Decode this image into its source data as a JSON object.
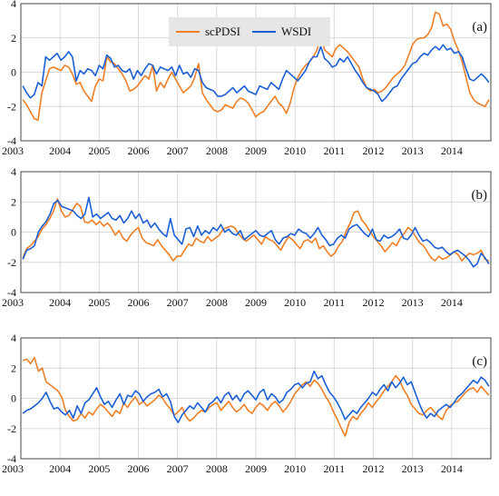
{
  "chart_data": [
    {
      "type": "line",
      "panel_label": "(a)",
      "xlim": [
        2003,
        2015
      ],
      "ylim": [
        -4,
        4
      ],
      "yticks": [
        -4,
        -2,
        0,
        2,
        4
      ],
      "xtick_labels": [
        "2003",
        "2004",
        "2005",
        "2006",
        "2007",
        "2008",
        "2009",
        "2010",
        "2011",
        "2012",
        "2013",
        "2014"
      ],
      "grid": true,
      "legend": {
        "position": "top-center",
        "entries": [
          "scPDSI",
          "WSDI"
        ]
      },
      "series": [
        {
          "name": "scPDSI",
          "color": "#F07F26",
          "values": [
            -1.6,
            -1.9,
            -2.3,
            -2.7,
            -2.8,
            -1.2,
            -0.5,
            0.2,
            0.3,
            0.2,
            0.1,
            0.4,
            0.3,
            -0.1,
            -0.7,
            -0.6,
            -1.1,
            -1.4,
            -1.7,
            -0.8,
            -0.4,
            -0.5,
            0.9,
            0.6,
            0.5,
            0.2,
            -0.1,
            -0.5,
            -1.1,
            -1.0,
            -0.8,
            -0.5,
            -0.2,
            -0.4,
            0.4,
            -1.1,
            -0.6,
            -0.9,
            -0.4,
            0.0,
            -0.4,
            -0.8,
            -1.2,
            -1.0,
            -0.8,
            -0.3,
            0.5,
            -1.2,
            -1.6,
            -1.9,
            -2.2,
            -2.3,
            -2.2,
            -1.9,
            -2.0,
            -2.1,
            -1.7,
            -1.5,
            -1.6,
            -1.8,
            -2.2,
            -2.6,
            -2.4,
            -2.3,
            -2.0,
            -1.7,
            -1.4,
            -1.8,
            -2.0,
            -2.4,
            -1.8,
            -0.9,
            -0.3,
            0.1,
            0.4,
            0.6,
            0.9,
            1.3,
            2.1,
            1.3,
            1.1,
            0.9,
            1.4,
            1.6,
            1.4,
            1.2,
            0.9,
            0.6,
            0.3,
            -0.4,
            -0.9,
            -1.1,
            -1.0,
            -1.2,
            -1.1,
            -0.9,
            -0.6,
            -0.3,
            -0.1,
            0.1,
            0.4,
            1.0,
            1.6,
            1.9,
            2.0,
            2.0,
            2.2,
            2.6,
            3.5,
            3.4,
            2.7,
            2.8,
            2.5,
            1.8,
            1.3,
            0.6,
            -0.3,
            -1.2,
            -1.6,
            -1.8,
            -1.9,
            -2.0,
            -1.6
          ]
        },
        {
          "name": "WSDI",
          "color": "#1A5FD6",
          "values": [
            -0.8,
            -1.2,
            -1.5,
            -1.3,
            -0.6,
            -0.8,
            0.9,
            0.7,
            0.9,
            1.1,
            0.7,
            0.9,
            1.2,
            0.9,
            -0.5,
            0.1,
            -0.1,
            0.2,
            0.1,
            -0.2,
            0.4,
            0.2,
            1.0,
            0.8,
            0.3,
            0.4,
            0.1,
            0.0,
            0.2,
            -0.4,
            0.1,
            -0.2,
            0.2,
            0.5,
            0.4,
            -0.1,
            0.3,
            0.2,
            0.1,
            0.3,
            -0.2,
            0.4,
            -0.1,
            0.0,
            -0.3,
            0.2,
            0.1,
            -0.6,
            -0.9,
            -1.0,
            -1.1,
            -1.4,
            -1.4,
            -1.3,
            -1.1,
            -0.9,
            -1.2,
            -1.0,
            -0.8,
            -1.1,
            -1.2,
            -1.3,
            -0.8,
            -0.9,
            -1.0,
            -0.6,
            -0.8,
            -1.0,
            -0.4,
            0.1,
            -0.1,
            -0.3,
            -0.5,
            -0.2,
            0.1,
            0.6,
            0.9,
            0.9,
            1.5,
            0.8,
            0.6,
            0.3,
            0.4,
            0.8,
            0.6,
            0.9,
            0.5,
            0.1,
            -0.2,
            -0.6,
            -0.9,
            -1.0,
            -1.1,
            -1.3,
            -1.7,
            -1.5,
            -1.2,
            -0.9,
            -0.8,
            -0.4,
            -0.1,
            0.2,
            0.5,
            0.6,
            0.9,
            1.1,
            1.0,
            1.3,
            1.5,
            1.3,
            1.6,
            1.3,
            1.4,
            1.1,
            1.2,
            0.9,
            0.2,
            -0.4,
            -0.5,
            -0.3,
            -0.1,
            -0.3,
            -0.6
          ]
        }
      ]
    },
    {
      "type": "line",
      "panel_label": "(b)",
      "xlim": [
        2003,
        2015
      ],
      "ylim": [
        -4,
        4
      ],
      "yticks": [
        -4,
        -2,
        0,
        2,
        4
      ],
      "xtick_labels": [
        "2003",
        "2004",
        "2005",
        "2006",
        "2007",
        "2008",
        "2009",
        "2010",
        "2011",
        "2012",
        "2013",
        "2014"
      ],
      "grid": true,
      "series": [
        {
          "name": "scPDSI",
          "color": "#F07F26",
          "values": [
            -1.7,
            -1.1,
            -0.9,
            -0.6,
            -0.3,
            0.2,
            0.5,
            0.9,
            1.4,
            2.2,
            1.4,
            1.0,
            1.1,
            1.5,
            1.9,
            1.7,
            0.7,
            0.6,
            0.8,
            0.5,
            0.7,
            0.4,
            0.6,
            0.3,
            -0.2,
            0.1,
            -0.4,
            -0.6,
            -0.2,
            0.1,
            0.3,
            -0.4,
            -0.7,
            -0.8,
            -0.9,
            -0.5,
            -0.9,
            -1.2,
            -1.5,
            -1.9,
            -1.6,
            -1.6,
            -1.2,
            -0.8,
            -0.9,
            -0.4,
            -0.6,
            -0.7,
            -0.3,
            -0.6,
            -0.4,
            -0.2,
            0.2,
            0.3,
            0.4,
            0.3,
            -0.1,
            -0.4,
            -0.6,
            -0.4,
            -0.2,
            -0.5,
            -0.8,
            -0.3,
            -0.5,
            -0.6,
            -0.9,
            -1.2,
            -0.7,
            -0.3,
            -0.5,
            -0.8,
            -1.1,
            -0.6,
            -0.5,
            -0.7,
            -0.4,
            -1.1,
            -0.9,
            -1.3,
            -1.6,
            -1.4,
            -0.9,
            -0.6,
            0.1,
            0.6,
            1.3,
            1.4,
            0.8,
            0.5,
            0.1,
            -0.3,
            -0.6,
            -0.9,
            -1.3,
            -1.0,
            -0.7,
            -0.9,
            -0.4,
            -0.1,
            0.3,
            0.1,
            -0.3,
            -0.7,
            -0.9,
            -1.3,
            -1.7,
            -1.9,
            -1.6,
            -1.8,
            -1.7,
            -1.5,
            -1.3,
            -1.5,
            -1.9,
            -1.6,
            -1.4,
            -1.5,
            -1.4,
            -1.2,
            -1.8,
            -1.9
          ]
        },
        {
          "name": "WSDI",
          "color": "#1A5FD6",
          "values": [
            -1.8,
            -1.2,
            -1.1,
            -0.9,
            0.0,
            0.4,
            0.7,
            1.2,
            1.9,
            2.1,
            1.7,
            1.6,
            1.5,
            1.4,
            1.1,
            0.9,
            1.2,
            2.3,
            1.0,
            1.2,
            0.9,
            1.1,
            1.3,
            0.9,
            0.8,
            1.1,
            0.6,
            0.9,
            1.4,
            0.9,
            1.2,
            0.6,
            0.8,
            0.3,
            0.6,
            0.2,
            -0.1,
            -0.3,
            0.9,
            -0.2,
            -0.5,
            -0.8,
            0.2,
            0.3,
            -0.3,
            0.4,
            -0.2,
            0.1,
            -0.1,
            0.3,
            0.1,
            0.5,
            0.0,
            0.2,
            -0.1,
            -0.2,
            0.1,
            -0.5,
            -0.3,
            -0.1,
            0.1,
            -0.2,
            -0.3,
            -0.1,
            0.1,
            -0.5,
            -0.8,
            -0.4,
            -0.3,
            -0.1,
            -0.2,
            0.2,
            0.0,
            -0.1,
            -0.4,
            -0.1,
            0.3,
            -0.2,
            -0.5,
            -0.9,
            -0.8,
            -0.4,
            -0.2,
            -0.4,
            0.2,
            0.4,
            0.5,
            0.2,
            -0.1,
            -0.3,
            0.2,
            -0.5,
            -0.6,
            -0.2,
            -0.4,
            -0.3,
            -0.1,
            0.2,
            -0.4,
            -0.5,
            -0.2,
            0.3,
            -0.2,
            -0.6,
            -0.5,
            -0.7,
            -1.0,
            -1.1,
            -1.0,
            -1.3,
            -1.5,
            -1.3,
            -1.2,
            -1.4,
            -1.6,
            -1.9,
            -2.3,
            -2.1,
            -1.4,
            -1.7,
            -2.1
          ]
        }
      ]
    },
    {
      "type": "line",
      "panel_label": "(c)",
      "xlim": [
        2003,
        2015
      ],
      "ylim": [
        -4,
        4
      ],
      "yticks": [
        -4,
        -2,
        0,
        2,
        4
      ],
      "xtick_labels": [
        "2003",
        "2004",
        "2005",
        "2006",
        "2007",
        "2008",
        "2009",
        "2010",
        "2011",
        "2012",
        "2013",
        "2014"
      ],
      "grid": true,
      "series": [
        {
          "name": "scPDSI",
          "color": "#F07F26",
          "values": [
            2.5,
            2.6,
            2.3,
            2.7,
            1.8,
            2.0,
            1.1,
            0.9,
            0.7,
            0.5,
            0.1,
            -0.8,
            -1.2,
            -1.5,
            -1.4,
            -1.0,
            -1.3,
            -0.9,
            -1.1,
            -0.7,
            -0.4,
            -0.6,
            -0.9,
            -1.2,
            -0.8,
            -1.0,
            -0.3,
            -0.6,
            -0.2,
            0.1,
            -0.4,
            -0.2,
            -0.5,
            -0.3,
            -0.1,
            0.2,
            0.0,
            -0.4,
            -0.7,
            -1.1,
            -0.9,
            -0.6,
            -1.2,
            -1.5,
            -1.3,
            -1.0,
            -0.8,
            -0.9,
            -0.6,
            -0.4,
            -0.3,
            -0.8,
            -0.5,
            -0.2,
            -0.6,
            -0.9,
            -0.7,
            -0.4,
            -0.8,
            -1.0,
            -0.6,
            -0.3,
            -0.5,
            -0.8,
            -0.4,
            -0.2,
            -0.5,
            -0.9,
            -0.6,
            -0.2,
            0.3,
            0.6,
            0.9,
            1.1,
            0.8,
            1.2,
            1.0,
            0.6,
            0.1,
            -0.3,
            -0.9,
            -1.4,
            -2.0,
            -2.5,
            -1.6,
            -1.2,
            -1.4,
            -1.0,
            -0.7,
            -0.3,
            -0.6,
            -0.2,
            0.1,
            0.5,
            0.8,
            1.1,
            1.5,
            1.2,
            0.6,
            0.2,
            -0.4,
            -0.7,
            -1.0,
            -1.1,
            -0.8,
            -0.6,
            -0.9,
            -1.2,
            -1.4,
            -0.8,
            -0.5,
            -0.3,
            -0.2,
            0.1,
            0.4,
            0.6,
            0.7,
            0.4,
            0.8,
            0.5,
            0.2
          ]
        },
        {
          "name": "WSDI",
          "color": "#1A5FD6",
          "values": [
            -1.0,
            -0.8,
            -0.7,
            -0.5,
            -0.3,
            0.0,
            0.4,
            -0.2,
            -0.7,
            -0.6,
            -0.9,
            -1.1,
            -0.8,
            -1.3,
            -0.5,
            -1.0,
            -0.3,
            -0.1,
            0.3,
            0.7,
            0.1,
            -0.4,
            -0.2,
            -0.6,
            -0.1,
            0.3,
            -0.4,
            0.2,
            0.1,
            0.5,
            0.3,
            -0.2,
            0.1,
            0.3,
            0.4,
            0.6,
            0.1,
            0.3,
            -0.2,
            -1.2,
            -1.6,
            -1.1,
            -0.8,
            -0.5,
            -0.7,
            -0.3,
            -0.6,
            -0.9,
            -0.4,
            -0.2,
            0.1,
            -0.3,
            0.2,
            0.4,
            -0.1,
            0.2,
            -0.2,
            0.3,
            0.5,
            0.2,
            -0.1,
            0.4,
            0.6,
            -0.1,
            0.3,
            0.1,
            -0.3,
            -0.1,
            0.4,
            0.6,
            0.9,
            1.0,
            0.7,
            1.0,
            1.1,
            1.8,
            1.3,
            1.5,
            0.9,
            0.4,
            0.1,
            -0.3,
            -0.8,
            -1.4,
            -1.1,
            -0.8,
            -1.0,
            -0.6,
            -0.3,
            0.0,
            0.4,
            0.2,
            0.6,
            0.9,
            0.5,
            1.1,
            0.7,
            1.0,
            1.4,
            0.9,
            1.1,
            0.4,
            -0.3,
            -0.9,
            -1.3,
            -1.0,
            -1.2,
            -0.8,
            -0.6,
            -0.4,
            -0.6,
            -0.3,
            0.1,
            0.3,
            0.6,
            0.9,
            1.2,
            1.0,
            1.4,
            1.2,
            0.8
          ]
        }
      ]
    }
  ]
}
